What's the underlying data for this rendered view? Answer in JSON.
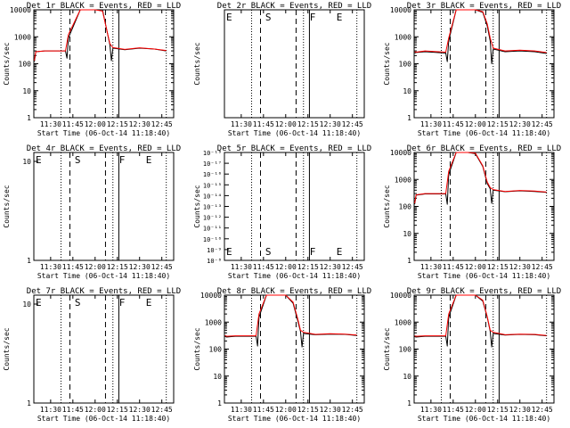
{
  "x_ticks": [
    "11:30",
    "11:45",
    "12:00",
    "12:15",
    "12:30",
    "12:45"
  ],
  "ylabel": "Counts/sec",
  "xlabel": "Start Time (06-Oct-14 11:18:40)",
  "region_markers": [
    {
      "label": "E",
      "time": "11:18:40"
    },
    {
      "label": "S",
      "time": "11:45"
    },
    {
      "label": "F",
      "time": "12:15"
    },
    {
      "label": "E",
      "time": "12:33"
    }
  ],
  "colors": {
    "events": "#000000",
    "lld": "#ff0000"
  },
  "chart_data": [
    {
      "type": "line",
      "title": "Det 1r BLACK = Events, RED = LLD",
      "mode": "counts",
      "y_ticks": [
        "1",
        "10",
        "100",
        "1000",
        "10000"
      ],
      "ylim": [
        1,
        10000
      ],
      "yscale": "log",
      "series": [
        {
          "name": "Events",
          "color": "#000000",
          "x": [
            "11:19",
            "11:20",
            "11:26",
            "11:40",
            "11:41",
            "11:42",
            "11:50",
            "12:00",
            "12:05",
            "12:10",
            "12:11",
            "12:12",
            "12:20",
            "12:30",
            "12:40",
            "12:48"
          ],
          "values": [
            120,
            280,
            300,
            300,
            160,
            900,
            10000,
            10000,
            10000,
            500,
            130,
            380,
            330,
            380,
            350,
            300
          ]
        },
        {
          "name": "LLD",
          "color": "#ff0000",
          "x": [
            "11:19",
            "11:20",
            "11:26",
            "11:40",
            "11:42",
            "11:50",
            "12:00",
            "12:05",
            "12:10",
            "12:12",
            "12:20",
            "12:30",
            "12:40",
            "12:48"
          ],
          "values": [
            130,
            280,
            300,
            300,
            1200,
            10000,
            10000,
            9000,
            550,
            400,
            340,
            390,
            350,
            310
          ]
        }
      ]
    },
    {
      "type": "line",
      "title": "Det 2r BLACK = Events, RED = LLD",
      "mode": "labels",
      "series": []
    },
    {
      "type": "line",
      "title": "Det 3r BLACK = Events, RED = LLD",
      "mode": "counts",
      "y_ticks": [
        "1",
        "10",
        "100",
        "1000",
        "10000"
      ],
      "ylim": [
        1,
        10000
      ],
      "yscale": "log",
      "series": [
        {
          "name": "Events",
          "color": "#000000",
          "x": [
            "11:19",
            "11:20",
            "11:26",
            "11:40",
            "11:41",
            "11:42",
            "11:47",
            "11:55",
            "12:00",
            "12:05",
            "12:08",
            "12:10",
            "12:11",
            "12:12",
            "12:20",
            "12:30",
            "12:40",
            "12:48"
          ],
          "values": [
            250,
            260,
            280,
            250,
            120,
            700,
            10000,
            10000,
            10000,
            8000,
            2500,
            700,
            100,
            350,
            280,
            300,
            280,
            240
          ]
        },
        {
          "name": "LLD",
          "color": "#ff0000",
          "x": [
            "11:19",
            "11:20",
            "11:26",
            "11:40",
            "11:42",
            "11:47",
            "11:55",
            "12:00",
            "12:05",
            "12:08",
            "12:10",
            "12:12",
            "12:20",
            "12:30",
            "12:40",
            "12:48"
          ],
          "values": [
            280,
            270,
            300,
            270,
            900,
            10000,
            10000,
            10000,
            8500,
            3000,
            900,
            380,
            300,
            320,
            300,
            260
          ]
        }
      ]
    },
    {
      "type": "line",
      "title": "Det 4r BLACK = Events, RED = LLD",
      "mode": "labels",
      "y_ticks": [
        "1",
        "10"
      ],
      "series": []
    },
    {
      "type": "line",
      "title": "Det 5r BLACK = Events, RED = LLD",
      "mode": "labels",
      "y_ticks": [
        "10⁻⁸",
        "10⁻⁹",
        "10⁻¹⁰",
        "10⁻¹¹",
        "10⁻¹²",
        "10⁻¹³",
        "10⁻¹⁴",
        "10⁻¹⁵",
        "10⁻¹⁶",
        "10⁻¹⁷",
        "10⁻¹⁸"
      ],
      "series": []
    },
    {
      "type": "line",
      "title": "Det 6r BLACK = Events, RED = LLD",
      "mode": "counts",
      "y_ticks": [
        "1",
        "10",
        "100",
        "1000",
        "10000"
      ],
      "ylim": [
        1,
        10000
      ],
      "yscale": "log",
      "series": [
        {
          "name": "Events",
          "color": "#000000",
          "x": [
            "11:19",
            "11:20",
            "11:26",
            "11:40",
            "11:41",
            "11:42",
            "11:47",
            "11:55",
            "12:00",
            "12:05",
            "12:08",
            "12:10",
            "12:11",
            "12:12",
            "12:20",
            "12:30",
            "12:40",
            "12:48"
          ],
          "values": [
            120,
            260,
            290,
            290,
            120,
            1500,
            10000,
            10000,
            9000,
            3000,
            700,
            450,
            130,
            400,
            350,
            380,
            360,
            330
          ]
        },
        {
          "name": "LLD",
          "color": "#ff0000",
          "x": [
            "11:19",
            "11:20",
            "11:26",
            "11:40",
            "11:42",
            "11:47",
            "11:55",
            "12:00",
            "12:05",
            "12:08",
            "12:10",
            "12:12",
            "12:20",
            "12:30",
            "12:40",
            "12:48"
          ],
          "values": [
            130,
            270,
            300,
            300,
            2000,
            10000,
            10000,
            9500,
            3200,
            800,
            500,
            420,
            360,
            390,
            370,
            340
          ]
        }
      ]
    },
    {
      "type": "line",
      "title": "Det 7r BLACK = Events, RED = LLD",
      "mode": "labels",
      "y_ticks": [
        "1",
        "10"
      ],
      "series": []
    },
    {
      "type": "line",
      "title": "Det 8r BLACK = Events, RED = LLD",
      "mode": "counts",
      "y_ticks": [
        "1",
        "10",
        "100",
        "1000",
        "10000"
      ],
      "ylim": [
        1,
        10000
      ],
      "yscale": "log",
      "series": [
        {
          "name": "Events",
          "color": "#000000",
          "x": [
            "11:19",
            "11:20",
            "11:26",
            "11:40",
            "11:41",
            "11:42",
            "11:47",
            "11:55",
            "12:00",
            "12:05",
            "12:08",
            "12:10",
            "12:11",
            "12:12",
            "12:20",
            "12:30",
            "12:40",
            "12:48"
          ],
          "values": [
            300,
            280,
            300,
            300,
            130,
            1500,
            10000,
            10000,
            10000,
            5000,
            1200,
            450,
            120,
            380,
            340,
            360,
            350,
            320
          ]
        },
        {
          "name": "LLD",
          "color": "#ff0000",
          "x": [
            "11:19",
            "11:20",
            "11:26",
            "11:40",
            "11:42",
            "11:47",
            "11:55",
            "12:00",
            "12:05",
            "12:08",
            "12:10",
            "12:12",
            "12:20",
            "12:30",
            "12:40",
            "12:48"
          ],
          "values": [
            320,
            300,
            310,
            310,
            2000,
            10000,
            10000,
            10000,
            5500,
            1400,
            500,
            420,
            350,
            370,
            360,
            330
          ]
        }
      ]
    },
    {
      "type": "line",
      "title": "Det 9r BLACK = Events, RED = LLD",
      "mode": "counts",
      "y_ticks": [
        "1",
        "10",
        "100",
        "1000",
        "10000"
      ],
      "ylim": [
        1,
        10000
      ],
      "yscale": "log",
      "series": [
        {
          "name": "Events",
          "color": "#000000",
          "x": [
            "11:19",
            "11:20",
            "11:26",
            "11:40",
            "11:41",
            "11:42",
            "11:47",
            "11:55",
            "12:00",
            "12:05",
            "12:08",
            "12:10",
            "12:11",
            "12:12",
            "12:20",
            "12:30",
            "12:40",
            "12:48"
          ],
          "values": [
            290,
            280,
            300,
            300,
            130,
            1500,
            10000,
            10000,
            10000,
            6000,
            1500,
            450,
            120,
            380,
            330,
            350,
            340,
            310
          ]
        },
        {
          "name": "LLD",
          "color": "#ff0000",
          "x": [
            "11:19",
            "11:20",
            "11:26",
            "11:40",
            "11:42",
            "11:47",
            "11:55",
            "12:00",
            "12:05",
            "12:08",
            "12:10",
            "12:12",
            "12:20",
            "12:30",
            "12:40",
            "12:48"
          ],
          "values": [
            310,
            300,
            310,
            310,
            2000,
            10000,
            10000,
            10000,
            6500,
            1600,
            500,
            420,
            340,
            360,
            350,
            320
          ]
        }
      ]
    }
  ]
}
